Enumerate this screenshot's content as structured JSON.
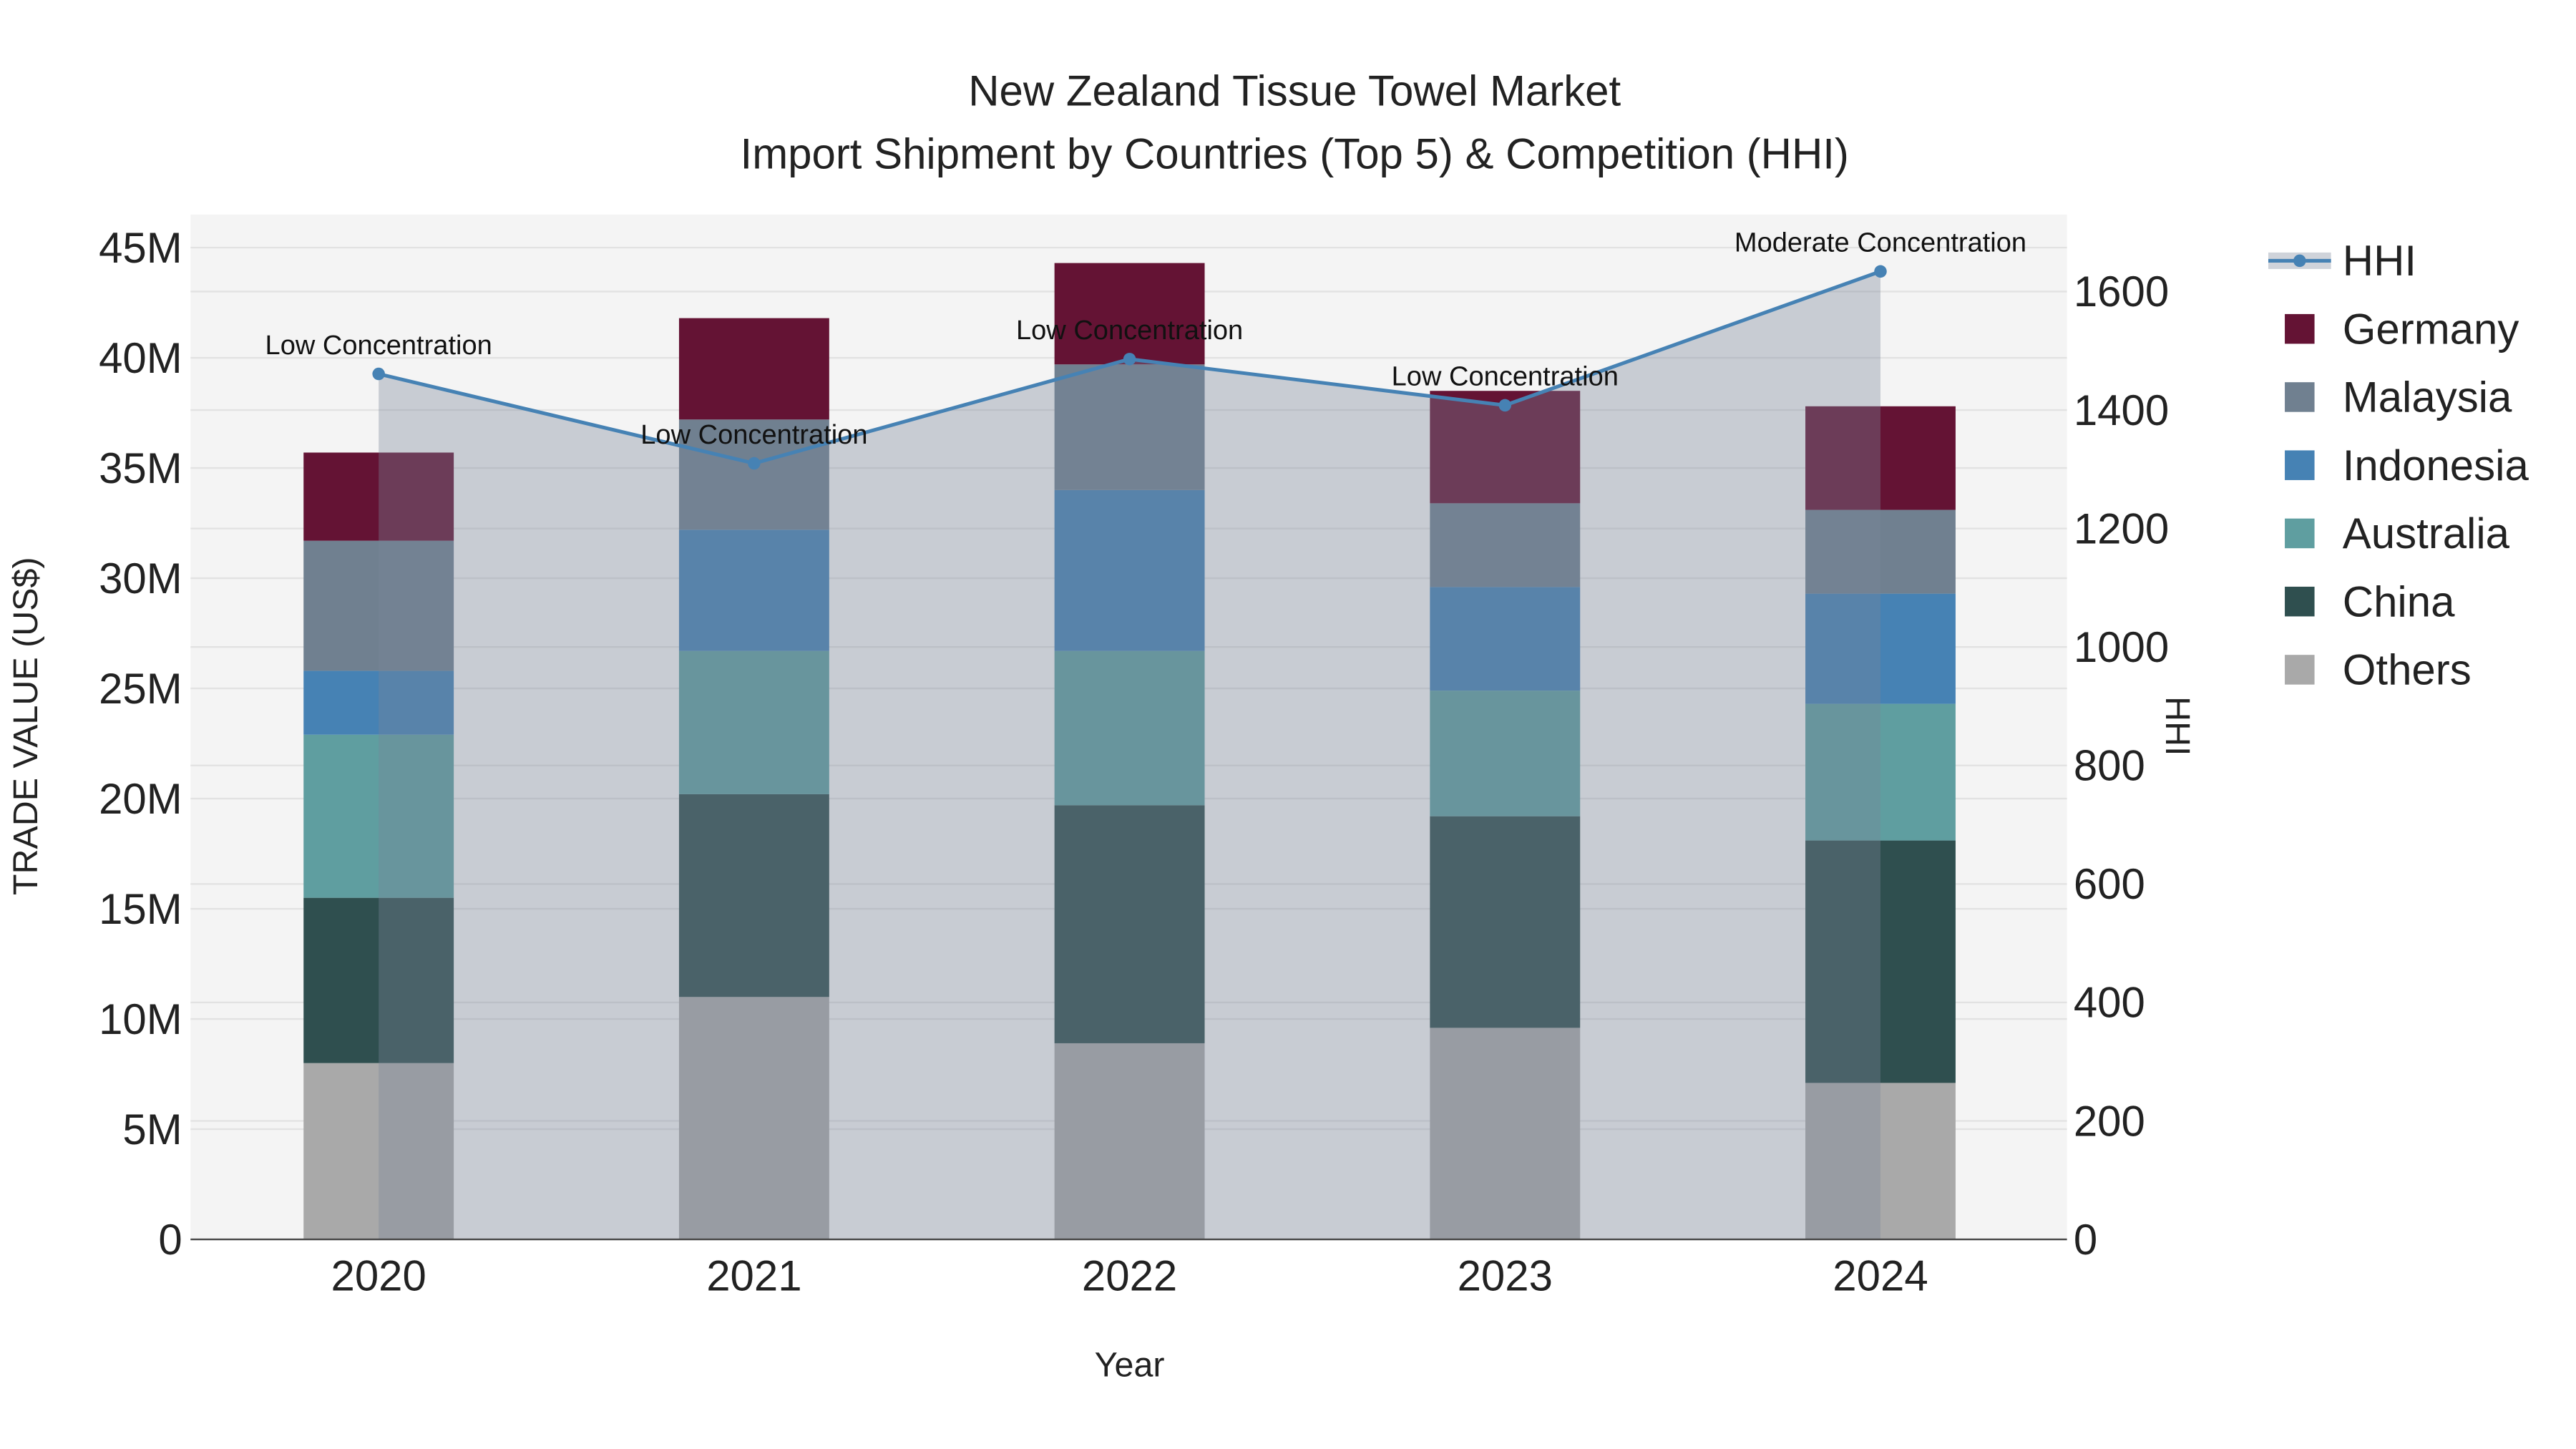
{
  "chart_data": {
    "type": "bar",
    "title": "New Zealand Tissue Towel Market",
    "subtitle": "Import Shipment by Countries (Top 5) & Competition (HHI)",
    "xlabel": "Year",
    "ylabel": "TRADE VALUE (US$)",
    "y2label": "HHI",
    "categories": [
      "2020",
      "2021",
      "2022",
      "2023",
      "2024"
    ],
    "ylim": [
      0,
      46.5
    ],
    "y_unit": "M",
    "yticks": [
      0,
      5,
      10,
      15,
      20,
      25,
      30,
      35,
      40,
      45
    ],
    "ytick_labels": [
      "0",
      "5M",
      "10M",
      "15M",
      "20M",
      "25M",
      "30M",
      "35M",
      "40M",
      "45M"
    ],
    "y2lim": [
      0,
      1730
    ],
    "y2ticks": [
      0,
      200,
      400,
      600,
      800,
      1000,
      1200,
      1400,
      1600
    ],
    "y2tick_labels": [
      "0",
      "200",
      "400",
      "600",
      "800",
      "1000",
      "1200",
      "1400",
      "1600"
    ],
    "stacked": true,
    "grid": true,
    "legend_position": "right",
    "series": [
      {
        "name": "Others",
        "color": "#A9A9A9",
        "values": [
          8.0,
          11.0,
          8.9,
          9.6,
          7.1
        ]
      },
      {
        "name": "China",
        "color": "#2F4F4F",
        "values": [
          7.5,
          9.2,
          10.8,
          9.6,
          11.0
        ]
      },
      {
        "name": "Australia",
        "color": "#5F9EA0",
        "values": [
          7.4,
          6.5,
          7.0,
          5.7,
          6.2
        ]
      },
      {
        "name": "Indonesia",
        "color": "#4682B4",
        "values": [
          2.9,
          5.5,
          7.3,
          4.7,
          5.0
        ]
      },
      {
        "name": "Malaysia",
        "color": "#708090",
        "values": [
          5.9,
          5.0,
          5.7,
          3.8,
          3.8
        ]
      },
      {
        "name": "Germany",
        "color": "#641334",
        "values": [
          4.0,
          4.6,
          4.6,
          5.1,
          4.7
        ]
      }
    ],
    "hhi": {
      "name": "HHI",
      "color": "#4682B4",
      "values": [
        1461,
        1310,
        1486,
        1408,
        1634
      ],
      "annotations": [
        "Low Concentration",
        "Low Concentration",
        "Low Concentration",
        "Low Concentration",
        "Moderate Concentration"
      ]
    },
    "legend_order": [
      "HHI",
      "Germany",
      "Malaysia",
      "Indonesia",
      "Australia",
      "China",
      "Others"
    ]
  }
}
